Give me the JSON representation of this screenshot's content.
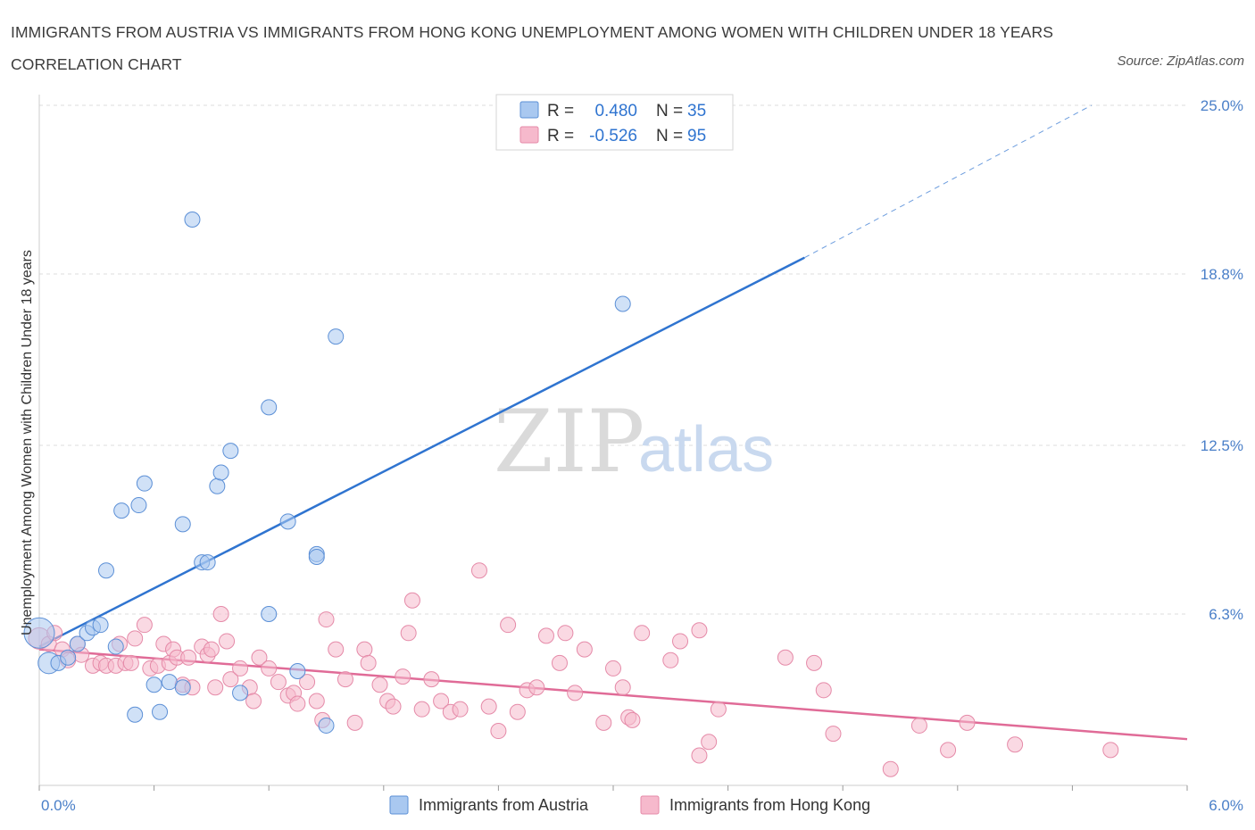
{
  "title": "IMMIGRANTS FROM AUSTRIA VS IMMIGRANTS FROM HONG KONG UNEMPLOYMENT AMONG WOMEN WITH CHILDREN UNDER 18 YEARS CORRELATION CHART",
  "source": "Source: ZipAtlas.com",
  "watermark": {
    "zip": "ZIP",
    "atlas": "atlas"
  },
  "legend_top": [
    {
      "r_label": "R =",
      "r_value": "0.480",
      "n_label": "N =",
      "n_value": "35"
    },
    {
      "r_label": "R =",
      "r_value": "-0.526",
      "n_label": "N =",
      "n_value": "95"
    }
  ],
  "colors": {
    "austria_fill": "#a9c8f0",
    "austria_stroke": "#5b8fd6",
    "austria_line": "#2f74d0",
    "hongkong_fill": "#f6b9cc",
    "hongkong_stroke": "#e58aa8",
    "hongkong_line": "#e06b97",
    "value_text": "#2f74d0",
    "grid": "#dddddd"
  },
  "chart_data": {
    "type": "scatter",
    "xlabel": "",
    "ylabel": "Unemployment Among Women with Children Under 18 years",
    "xlim": [
      0,
      6
    ],
    "ylim": [
      0,
      25
    ],
    "x_tick_labels": [
      "0.0%",
      "6.0%"
    ],
    "y_tick_values": [
      6.3,
      12.5,
      18.8,
      25.0
    ],
    "y_tick_labels": [
      "6.3%",
      "12.5%",
      "18.8%",
      "25.0%"
    ],
    "grid": true,
    "legend_placement": "bottom-center",
    "series": [
      {
        "name": "Immigrants from Austria",
        "r": 0.48,
        "n": 35,
        "trend": {
          "x": [
            0,
            4.0
          ],
          "y": [
            5.1,
            19.4
          ],
          "dashed_to": [
            5.5,
            25.0
          ]
        },
        "points": [
          [
            0.0,
            5.6,
            3
          ],
          [
            0.05,
            4.5,
            2
          ],
          [
            0.1,
            4.5,
            1
          ],
          [
            0.15,
            4.7,
            1
          ],
          [
            0.2,
            5.2,
            1
          ],
          [
            0.25,
            5.6,
            1
          ],
          [
            0.28,
            5.8,
            1
          ],
          [
            0.32,
            5.9,
            1
          ],
          [
            0.35,
            7.9,
            1
          ],
          [
            0.4,
            5.1,
            1
          ],
          [
            0.43,
            10.1,
            1
          ],
          [
            0.5,
            2.6,
            1
          ],
          [
            0.52,
            10.3,
            1
          ],
          [
            0.55,
            11.1,
            1
          ],
          [
            0.6,
            3.7,
            1
          ],
          [
            0.63,
            2.7,
            1
          ],
          [
            0.68,
            3.8,
            1
          ],
          [
            0.75,
            3.6,
            1
          ],
          [
            0.75,
            9.6,
            1
          ],
          [
            0.8,
            20.8,
            1
          ],
          [
            0.85,
            8.2,
            1
          ],
          [
            0.88,
            8.2,
            1
          ],
          [
            0.93,
            11.0,
            1
          ],
          [
            0.95,
            11.5,
            1
          ],
          [
            1.0,
            12.3,
            1
          ],
          [
            1.05,
            3.4,
            1
          ],
          [
            1.2,
            13.9,
            1
          ],
          [
            1.2,
            6.3,
            1
          ],
          [
            1.3,
            9.7,
            1
          ],
          [
            1.35,
            4.2,
            1
          ],
          [
            1.45,
            8.5,
            1
          ],
          [
            1.45,
            8.4,
            1
          ],
          [
            1.5,
            2.2,
            1
          ],
          [
            1.55,
            16.5,
            1
          ],
          [
            3.05,
            17.7,
            1
          ]
        ]
      },
      {
        "name": "Immigrants from Hong Kong",
        "r": -0.526,
        "n": 95,
        "trend": {
          "x": [
            0,
            6.0
          ],
          "y": [
            5.0,
            1.7
          ]
        },
        "points": [
          [
            0.0,
            5.4,
            2
          ],
          [
            0.05,
            5.2,
            1
          ],
          [
            0.08,
            5.6,
            1
          ],
          [
            0.12,
            5.0,
            1
          ],
          [
            0.15,
            4.6,
            1
          ],
          [
            0.2,
            5.2,
            1
          ],
          [
            0.22,
            4.8,
            1
          ],
          [
            0.28,
            4.4,
            1
          ],
          [
            0.32,
            4.5,
            1
          ],
          [
            0.35,
            4.4,
            1
          ],
          [
            0.4,
            4.4,
            1
          ],
          [
            0.42,
            5.2,
            1
          ],
          [
            0.45,
            4.5,
            1
          ],
          [
            0.48,
            4.5,
            1
          ],
          [
            0.5,
            5.4,
            1
          ],
          [
            0.55,
            5.9,
            1
          ],
          [
            0.58,
            4.3,
            1
          ],
          [
            0.62,
            4.4,
            1
          ],
          [
            0.65,
            5.2,
            1
          ],
          [
            0.68,
            4.5,
            1
          ],
          [
            0.7,
            5.0,
            1
          ],
          [
            0.72,
            4.7,
            1
          ],
          [
            0.75,
            3.7,
            1
          ],
          [
            0.78,
            4.7,
            1
          ],
          [
            0.8,
            3.6,
            1
          ],
          [
            0.85,
            5.1,
            1
          ],
          [
            0.88,
            4.8,
            1
          ],
          [
            0.9,
            5.0,
            1
          ],
          [
            0.92,
            3.6,
            1
          ],
          [
            0.95,
            6.3,
            1
          ],
          [
            0.98,
            5.3,
            1
          ],
          [
            1.0,
            3.9,
            1
          ],
          [
            1.05,
            4.3,
            1
          ],
          [
            1.1,
            3.6,
            1
          ],
          [
            1.12,
            3.1,
            1
          ],
          [
            1.15,
            4.7,
            1
          ],
          [
            1.2,
            4.3,
            1
          ],
          [
            1.25,
            3.8,
            1
          ],
          [
            1.3,
            3.3,
            1
          ],
          [
            1.33,
            3.4,
            1
          ],
          [
            1.35,
            3.0,
            1
          ],
          [
            1.4,
            3.8,
            1
          ],
          [
            1.45,
            3.1,
            1
          ],
          [
            1.48,
            2.4,
            1
          ],
          [
            1.5,
            6.1,
            1
          ],
          [
            1.55,
            5.0,
            1
          ],
          [
            1.6,
            3.9,
            1
          ],
          [
            1.65,
            2.3,
            1
          ],
          [
            1.7,
            5.0,
            1
          ],
          [
            1.72,
            4.5,
            1
          ],
          [
            1.78,
            3.7,
            1
          ],
          [
            1.82,
            3.1,
            1
          ],
          [
            1.85,
            2.9,
            1
          ],
          [
            1.9,
            4.0,
            1
          ],
          [
            1.93,
            5.6,
            1
          ],
          [
            1.95,
            6.8,
            1
          ],
          [
            2.0,
            2.8,
            1
          ],
          [
            2.05,
            3.9,
            1
          ],
          [
            2.1,
            3.1,
            1
          ],
          [
            2.15,
            2.7,
            1
          ],
          [
            2.2,
            2.8,
            1
          ],
          [
            2.3,
            7.9,
            1
          ],
          [
            2.35,
            2.9,
            1
          ],
          [
            2.4,
            2.0,
            1
          ],
          [
            2.45,
            5.9,
            1
          ],
          [
            2.5,
            2.7,
            1
          ],
          [
            2.55,
            3.5,
            1
          ],
          [
            2.6,
            3.6,
            1
          ],
          [
            2.65,
            5.5,
            1
          ],
          [
            2.72,
            4.5,
            1
          ],
          [
            2.75,
            5.6,
            1
          ],
          [
            2.8,
            3.4,
            1
          ],
          [
            2.85,
            5.0,
            1
          ],
          [
            2.95,
            2.3,
            1
          ],
          [
            3.0,
            4.3,
            1
          ],
          [
            3.05,
            3.6,
            1
          ],
          [
            3.08,
            2.5,
            1
          ],
          [
            3.1,
            2.4,
            1
          ],
          [
            3.15,
            5.6,
            1
          ],
          [
            3.3,
            4.6,
            1
          ],
          [
            3.35,
            5.3,
            1
          ],
          [
            3.45,
            1.1,
            1
          ],
          [
            3.5,
            1.6,
            1
          ],
          [
            3.55,
            2.8,
            1
          ],
          [
            3.9,
            4.7,
            1
          ],
          [
            4.05,
            4.5,
            1
          ],
          [
            4.1,
            3.5,
            1
          ],
          [
            4.15,
            1.9,
            1
          ],
          [
            4.45,
            0.6,
            1
          ],
          [
            4.6,
            2.2,
            1
          ],
          [
            4.75,
            1.3,
            1
          ],
          [
            4.85,
            2.3,
            1
          ],
          [
            5.1,
            1.5,
            1
          ],
          [
            5.6,
            1.3,
            1
          ],
          [
            3.45,
            5.7,
            1
          ]
        ]
      }
    ]
  }
}
